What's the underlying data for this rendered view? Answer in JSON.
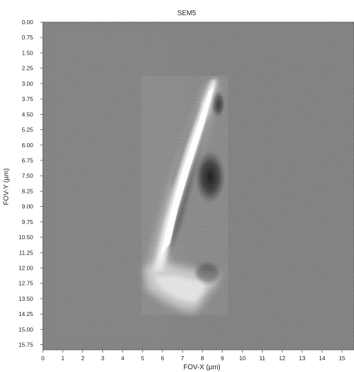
{
  "figure": {
    "title": "SEM5",
    "x_axis": {
      "label": "FOV-X (µm)",
      "ticks": [
        "0",
        "1",
        "2",
        "3",
        "4",
        "5",
        "6",
        "7",
        "8",
        "9",
        "10",
        "11",
        "12",
        "13",
        "14",
        "15"
      ],
      "range": [
        0,
        15.6
      ]
    },
    "y_axis": {
      "label": "FOV-Y (µm)",
      "ticks": [
        "0.00",
        "0.75",
        "1.50",
        "2.25",
        "3.00",
        "3.75",
        "4.50",
        "5.25",
        "6.00",
        "6.75",
        "7.50",
        "8.25",
        "9.00",
        "9.75",
        "10.50",
        "11.25",
        "12.00",
        "12.75",
        "13.50",
        "14.25",
        "15.00",
        "15.75"
      ],
      "range": [
        0,
        16.0
      ],
      "direction": "top-to-bottom"
    },
    "image": {
      "kind": "grayscale SEM micrograph",
      "background_color": "#6e6e6e"
    }
  }
}
